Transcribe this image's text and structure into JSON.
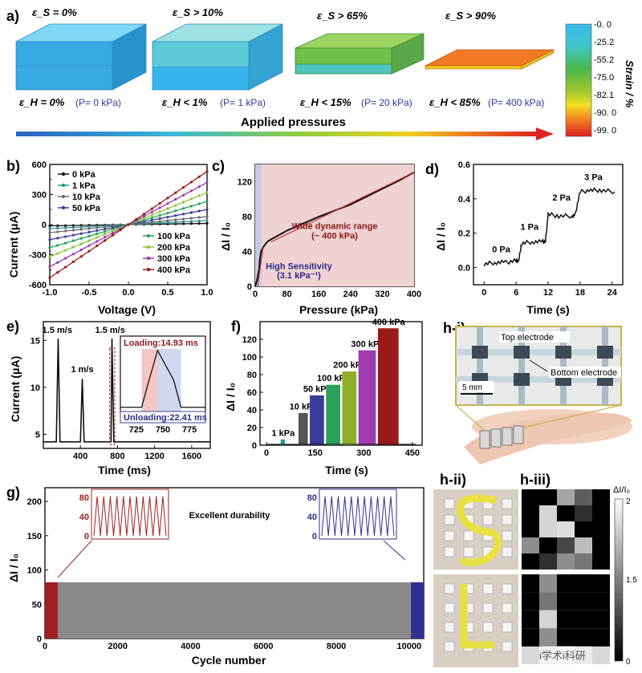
{
  "panel_a": {
    "label": "a)",
    "strains_s": [
      "ε_S = 0%",
      "ε_S > 10%",
      "ε_S > 65%",
      "ε_S > 90%"
    ],
    "strains_h": [
      "ε_H = 0%",
      "ε_H < 1%",
      "ε_H < 15%",
      "ε_H < 85%"
    ],
    "pressures": [
      "(P= 0 kPa)",
      "(P= 1 kPa)",
      "(P= 20 kPa)",
      "(P= 400 kPa)"
    ],
    "arrow_label": "Applied  pressures",
    "colorbar_title": "Strain / %",
    "colorbar_ticks": [
      "-0. 0",
      "-25.2",
      "-55.2",
      "-75.0",
      "-82.1",
      "-90. 0",
      "-99. 0"
    ],
    "block_colors": [
      "#3fb6ea",
      "#5cc9d6",
      "#6ec24a",
      "#f07020"
    ]
  },
  "panel_h": {
    "label_i": "h-i)",
    "label_ii": "h-ii)",
    "label_iii": "h-iii)",
    "top_electrode": "Top electrode",
    "bottom_electrode": "Bottom electrode",
    "scale": "5 mm",
    "cbar_label": "ΔI/I₀",
    "cbar_ticks": [
      "2",
      "1.5",
      "0"
    ],
    "watermark": "i学术i科研"
  },
  "chart_data": [
    {
      "id": "b",
      "label": "b)",
      "type": "line",
      "xlabel": "Voltage (V)",
      "ylabel": "Current (μA)",
      "xlim": [
        -1.0,
        1.0
      ],
      "ylim": [
        -600,
        600
      ],
      "xticks": [
        "-1.0",
        "-0.5",
        "0.0",
        "0.5",
        "1.0"
      ],
      "yticks": [
        "-600",
        "-300",
        "0",
        "300",
        "600"
      ],
      "y_minor_ticks": [
        "-450",
        "-150",
        "150",
        "450"
      ],
      "series": [
        {
          "name": "0 kPa",
          "slope": 12,
          "color": "#111111"
        },
        {
          "name": "1 kPa",
          "slope": 40,
          "color": "#2f8f8f"
        },
        {
          "name": "10 kPa",
          "slope": 80,
          "color": "#6c6c6c"
        },
        {
          "name": "50 kPa",
          "slope": 150,
          "color": "#3a3f9a"
        },
        {
          "name": "100 kPa",
          "slope": 230,
          "color": "#2aa05a"
        },
        {
          "name": "200 kPa",
          "slope": 320,
          "color": "#8ec53e"
        },
        {
          "name": "300 kPa",
          "slope": 420,
          "color": "#a03ab0"
        },
        {
          "name": "400 kPa",
          "slope": 530,
          "color": "#9a1a1a"
        }
      ]
    },
    {
      "id": "c",
      "label": "c)",
      "type": "line",
      "xlabel": "Pressure (kPa)",
      "ylabel": "ΔI / I₀",
      "xlim": [
        0,
        400
      ],
      "ylim": [
        0,
        140
      ],
      "xticks": [
        "0",
        "80",
        "160",
        "240",
        "320",
        "400"
      ],
      "x_minor_ticks": [
        "40",
        "120",
        "200",
        "280",
        "360"
      ],
      "yticks": [
        "0",
        "40",
        "80",
        "120"
      ],
      "annotations": [
        "Wide dynamic range",
        "(~ 400 kPa)",
        "High Sensitivity",
        "(3.1 kPa⁻¹)"
      ],
      "x": [
        0,
        5,
        10,
        12,
        15,
        20,
        25,
        30,
        40,
        60,
        80,
        120,
        160,
        200,
        240,
        280,
        320,
        360,
        400
      ],
      "y": [
        0,
        8,
        20,
        32,
        40,
        45,
        48,
        51,
        54,
        59,
        64,
        72,
        80,
        87,
        94,
        103,
        112,
        121,
        131
      ]
    },
    {
      "id": "d",
      "label": "d)",
      "type": "line",
      "xlabel": "Time (s)",
      "ylabel": "ΔI / I₀",
      "xlim": [
        -2,
        26
      ],
      "ylim": [
        -0.1,
        0.6
      ],
      "xticks": [
        "0",
        "6",
        "12",
        "18",
        "24"
      ],
      "yticks": [
        "0.0",
        "0.2",
        "0.4",
        "0.6"
      ],
      "annotations": [
        "0 Pa",
        "1 Pa",
        "2 Pa",
        "3 Pa"
      ],
      "x": [
        0,
        2,
        4,
        6,
        6.5,
        7,
        9,
        11,
        11.5,
        12,
        14,
        16.5,
        17,
        18,
        20,
        22,
        24.5
      ],
      "y": [
        0.02,
        0.03,
        0.03,
        0.04,
        0.04,
        0.14,
        0.15,
        0.15,
        0.15,
        0.31,
        0.3,
        0.3,
        0.3,
        0.44,
        0.45,
        0.45,
        0.44
      ]
    },
    {
      "id": "e",
      "label": "e)",
      "type": "line",
      "xlabel": "Time (ms)",
      "ylabel": "Current (μA)",
      "xlim": [
        0,
        1800
      ],
      "ylim": [
        3.5,
        17
      ],
      "xticks": [
        "400",
        "800",
        "1200",
        "1600"
      ],
      "yticks": [
        "5",
        "10",
        "15"
      ],
      "annotations": [
        "1.5 m/s",
        "1 m/s",
        "1.5 m/s"
      ],
      "x": [
        0,
        140,
        160,
        180,
        200,
        400,
        420,
        440,
        460,
        730,
        740,
        760,
        780,
        1800
      ],
      "y": [
        4.2,
        4.2,
        15.2,
        4.2,
        4.2,
        4.2,
        10.9,
        4.2,
        4.2,
        4.2,
        15.2,
        4.2,
        4.2,
        4.2
      ],
      "inset": {
        "xticks": [
          "725",
          "750",
          "775"
        ],
        "loading": "Loading:14.93 ms",
        "unloading": "Unloading:22.41 ms",
        "x": [
          710,
          730,
          737,
          745,
          760,
          767,
          790
        ],
        "y": [
          4.2,
          4.2,
          9.5,
          15.2,
          9.5,
          4.2,
          4.2
        ]
      }
    },
    {
      "id": "f",
      "label": "f)",
      "type": "bar",
      "xlabel": "Time (s)",
      "ylabel": "ΔI / I₀",
      "xlim": [
        -20,
        480
      ],
      "ylim": [
        0,
        140
      ],
      "xticks": [
        "0",
        "150",
        "300",
        "450"
      ],
      "yticks": [
        "0",
        "20",
        "40",
        "60",
        "80",
        "100",
        "120"
      ],
      "series": [
        {
          "name": "1 kPa",
          "t0": 45,
          "t1": 58,
          "value": 6,
          "color": "#2a9a9a"
        },
        {
          "name": "10 kPa",
          "t0": 100,
          "t1": 128,
          "value": 36,
          "color": "#555555"
        },
        {
          "name": "50 kPa",
          "t0": 135,
          "t1": 178,
          "value": 56,
          "color": "#3c3c9a"
        },
        {
          "name": "100 kPa",
          "t0": 185,
          "t1": 228,
          "value": 68,
          "color": "#2aa05a"
        },
        {
          "name": "200 kPa",
          "t0": 235,
          "t1": 278,
          "value": 83,
          "color": "#8fae2a"
        },
        {
          "name": "300 kPa",
          "t0": 285,
          "t1": 338,
          "value": 107,
          "color": "#a03ab0"
        },
        {
          "name": "400 kPa",
          "t0": 345,
          "t1": 408,
          "value": 132,
          "color": "#9a1a1a"
        }
      ]
    },
    {
      "id": "g",
      "label": "g)",
      "type": "area",
      "xlabel": "Cycle number",
      "ylabel": "ΔI / I₀",
      "xlim": [
        0,
        10400
      ],
      "ylim": [
        0,
        220
      ],
      "xticks": [
        "0",
        "2000",
        "4000",
        "6000",
        "8000",
        "10000"
      ],
      "yticks": [
        "0",
        "50",
        "100",
        "150",
        "200"
      ],
      "value": 82,
      "annotation": "Excellent durability",
      "insets": [
        {
          "yticks": [
            "0",
            "40",
            "80"
          ],
          "color": "#a02020",
          "cycles": 11,
          "peak": 82
        },
        {
          "yticks": [
            "0",
            "40",
            "80"
          ],
          "color": "#303090",
          "cycles": 11,
          "peak": 82
        }
      ]
    }
  ]
}
